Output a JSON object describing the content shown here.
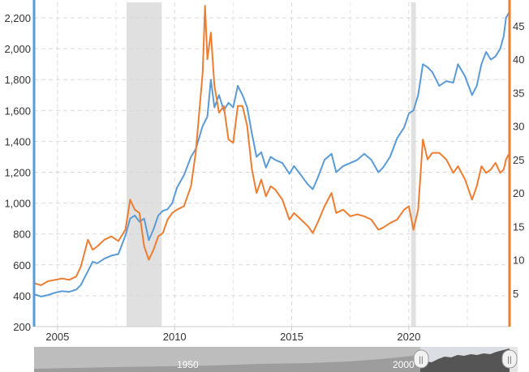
{
  "chart_data": {
    "type": "line",
    "title": "",
    "xlabel": "",
    "ylabel_left": "",
    "ylabel_right": "",
    "x_range": [
      2004.0,
      2024.3
    ],
    "x_ticks": [
      2005,
      2010,
      2015,
      2020
    ],
    "x_tick_labels": [
      "2005",
      "2010",
      "2015",
      "2020"
    ],
    "y_left": {
      "range": [
        200,
        2300
      ],
      "ticks": [
        200,
        400,
        600,
        800,
        1000,
        1200,
        1400,
        1600,
        1800,
        2000,
        2200
      ],
      "tick_labels": [
        "200",
        "400",
        "600",
        "800",
        "1,000",
        "1,200",
        "1,400",
        "1,600",
        "1,800",
        "2,000",
        "2,200"
      ]
    },
    "y_right": {
      "range": [
        0,
        48.5
      ],
      "ticks": [
        5,
        10,
        15,
        20,
        25,
        30,
        35,
        40,
        45
      ],
      "tick_labels": [
        "5",
        "10",
        "15",
        "20",
        "25",
        "30",
        "35",
        "40",
        "45"
      ]
    },
    "grid": true,
    "legend": "none",
    "recessions": [
      [
        2007.95,
        2009.45
      ],
      [
        2020.1,
        2020.3
      ]
    ],
    "series": [
      {
        "axis": "left",
        "color": "#5b9bd5",
        "points": [
          [
            2004.0,
            410
          ],
          [
            2004.3,
            395
          ],
          [
            2004.6,
            405
          ],
          [
            2004.9,
            420
          ],
          [
            2005.2,
            430
          ],
          [
            2005.5,
            425
          ],
          [
            2005.8,
            440
          ],
          [
            2006.0,
            470
          ],
          [
            2006.3,
            560
          ],
          [
            2006.5,
            620
          ],
          [
            2006.7,
            610
          ],
          [
            2007.0,
            640
          ],
          [
            2007.3,
            660
          ],
          [
            2007.6,
            670
          ],
          [
            2007.9,
            790
          ],
          [
            2008.1,
            900
          ],
          [
            2008.3,
            920
          ],
          [
            2008.5,
            880
          ],
          [
            2008.7,
            900
          ],
          [
            2008.9,
            760
          ],
          [
            2009.1,
            830
          ],
          [
            2009.3,
            920
          ],
          [
            2009.5,
            950
          ],
          [
            2009.7,
            960
          ],
          [
            2009.9,
            1000
          ],
          [
            2010.1,
            1100
          ],
          [
            2010.4,
            1180
          ],
          [
            2010.7,
            1300
          ],
          [
            2010.9,
            1350
          ],
          [
            2011.0,
            1400
          ],
          [
            2011.2,
            1500
          ],
          [
            2011.4,
            1560
          ],
          [
            2011.55,
            1800
          ],
          [
            2011.7,
            1620
          ],
          [
            2011.9,
            1700
          ],
          [
            2012.1,
            1600
          ],
          [
            2012.3,
            1650
          ],
          [
            2012.5,
            1620
          ],
          [
            2012.7,
            1760
          ],
          [
            2012.9,
            1700
          ],
          [
            2013.1,
            1620
          ],
          [
            2013.3,
            1450
          ],
          [
            2013.5,
            1300
          ],
          [
            2013.7,
            1330
          ],
          [
            2013.9,
            1230
          ],
          [
            2014.1,
            1300
          ],
          [
            2014.3,
            1280
          ],
          [
            2014.6,
            1260
          ],
          [
            2014.9,
            1190
          ],
          [
            2015.1,
            1240
          ],
          [
            2015.4,
            1180
          ],
          [
            2015.7,
            1120
          ],
          [
            2015.9,
            1090
          ],
          [
            2016.1,
            1160
          ],
          [
            2016.4,
            1280
          ],
          [
            2016.7,
            1320
          ],
          [
            2016.9,
            1200
          ],
          [
            2017.2,
            1240
          ],
          [
            2017.5,
            1260
          ],
          [
            2017.8,
            1280
          ],
          [
            2018.1,
            1320
          ],
          [
            2018.4,
            1280
          ],
          [
            2018.7,
            1200
          ],
          [
            2018.9,
            1230
          ],
          [
            2019.2,
            1300
          ],
          [
            2019.5,
            1420
          ],
          [
            2019.8,
            1490
          ],
          [
            2020.0,
            1580
          ],
          [
            2020.2,
            1600
          ],
          [
            2020.4,
            1700
          ],
          [
            2020.6,
            1900
          ],
          [
            2020.8,
            1880
          ],
          [
            2021.0,
            1850
          ],
          [
            2021.3,
            1760
          ],
          [
            2021.6,
            1790
          ],
          [
            2021.9,
            1780
          ],
          [
            2022.1,
            1900
          ],
          [
            2022.4,
            1820
          ],
          [
            2022.7,
            1700
          ],
          [
            2022.9,
            1760
          ],
          [
            2023.1,
            1900
          ],
          [
            2023.3,
            1980
          ],
          [
            2023.5,
            1930
          ],
          [
            2023.7,
            1950
          ],
          [
            2023.9,
            2000
          ],
          [
            2024.05,
            2080
          ],
          [
            2024.15,
            2200
          ],
          [
            2024.3,
            2240
          ]
        ]
      },
      {
        "axis": "right",
        "color": "#ed7d31",
        "points": [
          [
            2004.0,
            6.5
          ],
          [
            2004.3,
            6.2
          ],
          [
            2004.6,
            6.8
          ],
          [
            2004.9,
            7.0
          ],
          [
            2005.2,
            7.2
          ],
          [
            2005.5,
            7.0
          ],
          [
            2005.8,
            7.5
          ],
          [
            2006.0,
            9.0
          ],
          [
            2006.3,
            13.0
          ],
          [
            2006.5,
            11.5
          ],
          [
            2006.7,
            12.0
          ],
          [
            2007.0,
            13.0
          ],
          [
            2007.3,
            13.5
          ],
          [
            2007.6,
            12.8
          ],
          [
            2007.9,
            14.5
          ],
          [
            2008.1,
            19.0
          ],
          [
            2008.3,
            17.5
          ],
          [
            2008.5,
            17.0
          ],
          [
            2008.7,
            12.0
          ],
          [
            2008.9,
            10.0
          ],
          [
            2009.1,
            11.5
          ],
          [
            2009.3,
            13.5
          ],
          [
            2009.5,
            14.0
          ],
          [
            2009.7,
            16.0
          ],
          [
            2009.9,
            17.0
          ],
          [
            2010.1,
            17.5
          ],
          [
            2010.4,
            18.0
          ],
          [
            2010.7,
            21.0
          ],
          [
            2010.9,
            26.0
          ],
          [
            2011.0,
            30.0
          ],
          [
            2011.2,
            38.0
          ],
          [
            2011.3,
            48.0
          ],
          [
            2011.4,
            40.0
          ],
          [
            2011.55,
            44.0
          ],
          [
            2011.7,
            36.0
          ],
          [
            2011.9,
            32.0
          ],
          [
            2012.1,
            33.0
          ],
          [
            2012.3,
            28.0
          ],
          [
            2012.5,
            27.5
          ],
          [
            2012.7,
            33.0
          ],
          [
            2012.9,
            33.0
          ],
          [
            2013.1,
            30.0
          ],
          [
            2013.3,
            23.5
          ],
          [
            2013.5,
            20.0
          ],
          [
            2013.7,
            22.0
          ],
          [
            2013.9,
            19.5
          ],
          [
            2014.1,
            21.0
          ],
          [
            2014.3,
            20.5
          ],
          [
            2014.6,
            19.0
          ],
          [
            2014.9,
            16.0
          ],
          [
            2015.1,
            17.0
          ],
          [
            2015.4,
            16.0
          ],
          [
            2015.7,
            15.0
          ],
          [
            2015.9,
            14.0
          ],
          [
            2016.1,
            15.5
          ],
          [
            2016.4,
            18.0
          ],
          [
            2016.7,
            20.0
          ],
          [
            2016.9,
            17.0
          ],
          [
            2017.2,
            17.5
          ],
          [
            2017.5,
            16.5
          ],
          [
            2017.8,
            16.8
          ],
          [
            2018.1,
            16.5
          ],
          [
            2018.4,
            16.0
          ],
          [
            2018.7,
            14.5
          ],
          [
            2018.9,
            14.8
          ],
          [
            2019.2,
            15.5
          ],
          [
            2019.5,
            16.0
          ],
          [
            2019.8,
            17.5
          ],
          [
            2020.0,
            18.0
          ],
          [
            2020.2,
            14.5
          ],
          [
            2020.4,
            17.5
          ],
          [
            2020.6,
            28.0
          ],
          [
            2020.8,
            25.0
          ],
          [
            2021.0,
            26.0
          ],
          [
            2021.3,
            26.0
          ],
          [
            2021.6,
            25.0
          ],
          [
            2021.9,
            23.0
          ],
          [
            2022.1,
            24.0
          ],
          [
            2022.4,
            22.0
          ],
          [
            2022.7,
            19.0
          ],
          [
            2022.9,
            21.0
          ],
          [
            2023.1,
            24.0
          ],
          [
            2023.3,
            23.0
          ],
          [
            2023.5,
            23.5
          ],
          [
            2023.7,
            24.5
          ],
          [
            2023.9,
            23.0
          ],
          [
            2024.05,
            23.5
          ],
          [
            2024.15,
            25.0
          ],
          [
            2024.3,
            26.0
          ]
        ]
      }
    ]
  },
  "navigator": {
    "label_left": "1950",
    "label_right": "2000",
    "handle_glyph": "||"
  }
}
